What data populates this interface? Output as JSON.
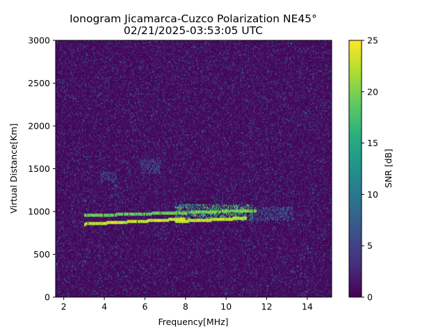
{
  "chart_data": {
    "type": "heatmap",
    "title": "Ionogram Jicamarca-Cuzco Polarization NE45°",
    "subtitle": "02/21/2025-03:53:05 UTC",
    "xlabel": "Frequency[MHz]",
    "ylabel": "Virtual Distance[Km]",
    "xlim": [
      1.6,
      15.2
    ],
    "ylim": [
      0,
      3000
    ],
    "x_ticks": [
      2,
      4,
      6,
      8,
      10,
      12,
      14
    ],
    "y_ticks": [
      0,
      500,
      1000,
      1500,
      2000,
      2500,
      3000
    ],
    "colorbar": {
      "label": "SNR [dB]",
      "range": [
        0,
        25
      ],
      "ticks": [
        0,
        5,
        10,
        15,
        20,
        25
      ],
      "colormap": "viridis"
    },
    "features": [
      {
        "type": "trace",
        "x_range": [
          3.0,
          8.0
        ],
        "distance_start": 850,
        "distance_end": 910,
        "snr": 24
      },
      {
        "type": "trace",
        "x_range": [
          3.0,
          11.5
        ],
        "distance_start": 950,
        "distance_end": 1010,
        "snr": 21
      },
      {
        "type": "trace",
        "x_range": [
          7.5,
          11.0
        ],
        "distance_start": 880,
        "distance_end": 920,
        "snr": 23
      },
      {
        "type": "patch",
        "x_range": [
          7.5,
          11.3
        ],
        "y_range": [
          900,
          1080
        ],
        "snr": 20
      },
      {
        "type": "patch",
        "x_range": [
          11.3,
          13.3
        ],
        "y_range": [
          900,
          1050
        ],
        "snr": 9
      },
      {
        "type": "patch",
        "x_range": [
          3.8,
          4.6
        ],
        "y_range": [
          1350,
          1460
        ],
        "snr": 8
      },
      {
        "type": "patch",
        "x_range": [
          5.8,
          6.8
        ],
        "y_range": [
          1450,
          1600
        ],
        "snr": 7
      }
    ]
  }
}
